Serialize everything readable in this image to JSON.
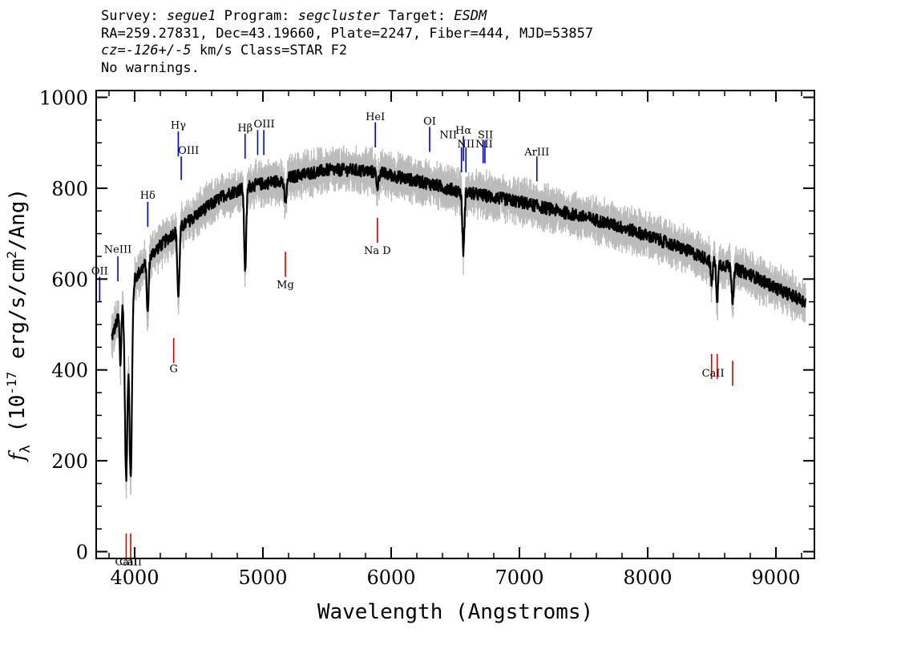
{
  "header": {
    "survey_label": "Survey:",
    "survey": "segue1",
    "program_label": "Program:",
    "program": "segcluster",
    "target_label": "Target:",
    "target": "ESDM",
    "line2": "RA=259.27831, Dec=43.19660, Plate=2247, Fiber=444, MJD=53857",
    "cz": "cz=-126+/-5",
    "cz_rest": " km/s Class=STAR F2",
    "line4": "No warnings."
  },
  "chart_data": {
    "type": "line",
    "xlabel": "Wavelength (Angstroms)",
    "ylabel": "f_λ (10^-17 erg/s/cm^2/Ang)",
    "ylabel_prefix": "f",
    "ylabel_sub": "λ",
    "ylabel_text": " (10",
    "ylabel_sup": "-17",
    "ylabel_text2": " erg/s/cm",
    "ylabel_sup2": "2",
    "ylabel_text3": "/Ang)",
    "xlim": [
      3700,
      9300
    ],
    "ylim": [
      -15,
      1015
    ],
    "xticks": [
      4000,
      5000,
      6000,
      7000,
      8000,
      9000
    ],
    "xtick_labels": [
      "4000",
      "5000",
      "6000",
      "7000",
      "8000",
      "9000"
    ],
    "yticks": [
      0,
      200,
      400,
      600,
      800,
      1000
    ],
    "ytick_labels": [
      "0",
      "200",
      "400",
      "600",
      "800",
      "1000"
    ],
    "grid": false,
    "continuum": [
      [
        3820,
        470
      ],
      [
        3900,
        540
      ],
      [
        4000,
        600
      ],
      [
        4150,
        660
      ],
      [
        4300,
        700
      ],
      [
        4500,
        745
      ],
      [
        4700,
        785
      ],
      [
        4900,
        805
      ],
      [
        5100,
        815
      ],
      [
        5300,
        830
      ],
      [
        5500,
        840
      ],
      [
        5700,
        840
      ],
      [
        5900,
        835
      ],
      [
        6100,
        822
      ],
      [
        6300,
        810
      ],
      [
        6500,
        795
      ],
      [
        6800,
        780
      ],
      [
        7000,
        770
      ],
      [
        7300,
        750
      ],
      [
        7600,
        730
      ],
      [
        7900,
        705
      ],
      [
        8200,
        675
      ],
      [
        8500,
        640
      ],
      [
        8800,
        610
      ],
      [
        9000,
        580
      ],
      [
        9230,
        550
      ]
    ],
    "absorption_lines": [
      {
        "x": 3934,
        "depth": 400,
        "width": 10
      },
      {
        "x": 3969,
        "depth": 420,
        "width": 10
      },
      {
        "x": 3889,
        "depth": 120,
        "width": 6
      },
      {
        "x": 4102,
        "depth": 120,
        "width": 7
      },
      {
        "x": 4341,
        "depth": 150,
        "width": 8
      },
      {
        "x": 4862,
        "depth": 180,
        "width": 8
      },
      {
        "x": 5175,
        "depth": 50,
        "width": 10
      },
      {
        "x": 5893,
        "depth": 30,
        "width": 8
      },
      {
        "x": 6563,
        "depth": 130,
        "width": 8
      },
      {
        "x": 8498,
        "depth": 50,
        "width": 7
      },
      {
        "x": 8542,
        "depth": 80,
        "width": 7
      },
      {
        "x": 8662,
        "depth": 70,
        "width": 7
      }
    ],
    "noise_amplitude": 14,
    "error_amplitude": 38,
    "series": [
      {
        "role": "flux",
        "color": "#000000"
      },
      {
        "role": "error",
        "color": "#bbbbbb"
      }
    ],
    "emission_labels": [
      {
        "label": "OII",
        "x": 3727,
        "y0": 550,
        "y1": 605,
        "tx": 3727,
        "ty": 610
      },
      {
        "label": "NeIII",
        "x": 3869,
        "y0": 595,
        "y1": 650,
        "tx": 3869,
        "ty": 658
      },
      {
        "label": "Hδ",
        "x": 4102,
        "y0": 715,
        "y1": 770,
        "tx": 4102,
        "ty": 777
      },
      {
        "label": "Hγ",
        "x": 4340,
        "y0": 870,
        "y1": 925,
        "tx": 4340,
        "ty": 931
      },
      {
        "label": "OIII",
        "x": 4363,
        "y0": 818,
        "y1": 870,
        "tx": 4420,
        "ty": 876
      },
      {
        "label": "Hβ",
        "x": 4861,
        "y0": 865,
        "y1": 920,
        "tx": 4861,
        "ty": 925
      },
      {
        "label": "OIII",
        "x": 4959,
        "y0": 873,
        "y1": 928,
        "tx": 5010,
        "ty": 934
      },
      {
        "label": "OIII",
        "x": 5007,
        "y0": 873,
        "y1": 928,
        "tx": 5010,
        "ty": 934
      },
      {
        "label": "HeI",
        "x": 5876,
        "y0": 890,
        "y1": 945,
        "tx": 5876,
        "ty": 950
      },
      {
        "label": "OI",
        "x": 6300,
        "y0": 880,
        "y1": 935,
        "tx": 6300,
        "ty": 940
      },
      {
        "label": "NII",
        "x": 6548,
        "y0": 835,
        "y1": 890,
        "tx": 6445,
        "ty": 910
      },
      {
        "label": "Hα",
        "x": 6563,
        "y0": 860,
        "y1": 915,
        "tx": 6563,
        "ty": 920
      },
      {
        "label": "NII",
        "x": 6583,
        "y0": 835,
        "y1": 890,
        "tx": 6583,
        "ty": 890
      },
      {
        "label": "SII",
        "x": 6717,
        "y0": 855,
        "y1": 905,
        "tx": 6735,
        "ty": 910
      },
      {
        "label": "NII",
        "x": 6731,
        "y0": 855,
        "y1": 905,
        "tx": 6725,
        "ty": 890
      },
      {
        "label": "ArIII",
        "x": 7136,
        "y0": 815,
        "y1": 870,
        "tx": 7136,
        "ty": 872
      }
    ],
    "absorption_labels": [
      {
        "label": "G",
        "x": 4304,
        "y0": 415,
        "y1": 470,
        "tx": 4304,
        "ty": 395
      },
      {
        "label": "Mg",
        "x": 5175,
        "y0": 605,
        "y1": 660,
        "tx": 5175,
        "ty": 580
      },
      {
        "label": "Na D",
        "x": 5893,
        "y0": 680,
        "y1": 735,
        "tx": 5893,
        "ty": 655
      },
      {
        "label": "CaII",
        "x": 8498,
        "y0": 380,
        "y1": 435,
        "tx": 8510,
        "ty": 385
      },
      {
        "label": "CaII",
        "x": 8542,
        "y0": 380,
        "y1": 435,
        "tx": 8510,
        "ty": 385
      },
      {
        "label": "CaII",
        "x": 8662,
        "y0": 365,
        "y1": 420,
        "tx": 8510,
        "ty": 385
      },
      {
        "label": "CaII",
        "x": 3934,
        "y0": -20,
        "y1": 40,
        "tx": 3934,
        "ty": -30
      },
      {
        "label": "CaII",
        "x": 3969,
        "y0": -20,
        "y1": 40,
        "tx": 3969,
        "ty": -30
      }
    ],
    "emission_color": "#0000cc",
    "absorption_color": "#cc0000"
  }
}
